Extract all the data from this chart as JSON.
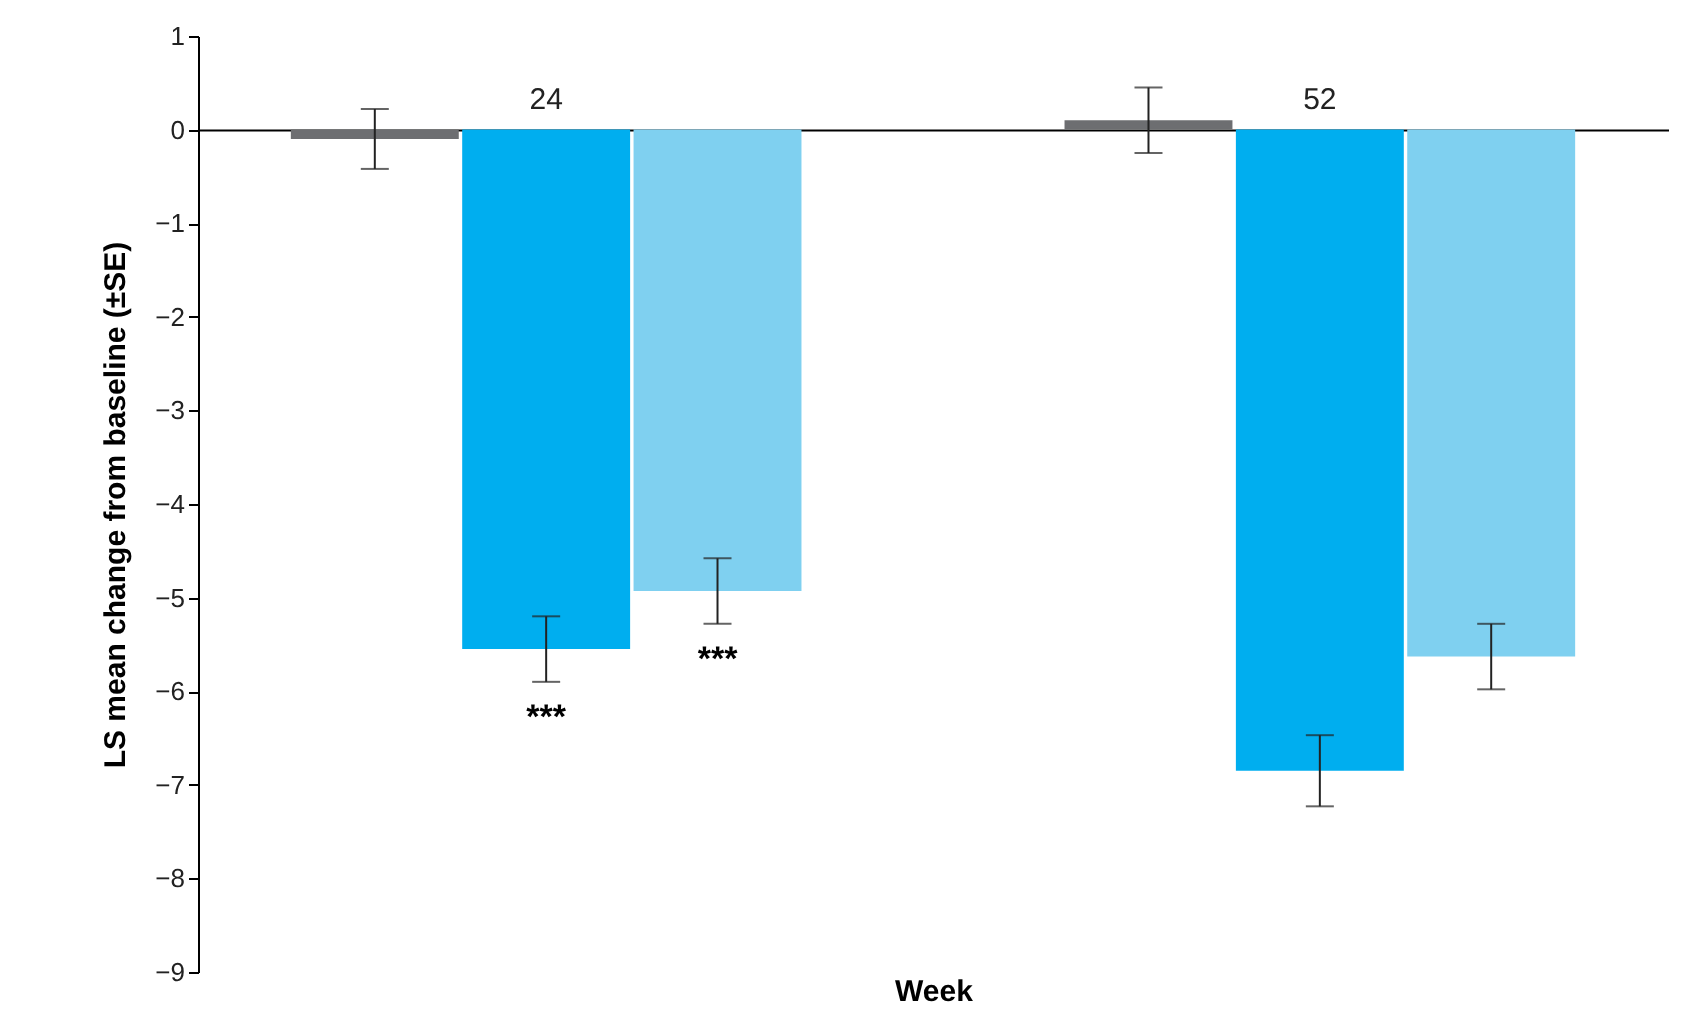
{
  "chart_data": {
    "type": "bar",
    "xlabel": "Week",
    "ylabel": "LS mean change from baseline (±SE)",
    "categories": [
      "24",
      "52"
    ],
    "series": [
      {
        "color": "#6d6e71",
        "values": [
          -0.1,
          0.1
        ],
        "errors": [
          0.32,
          0.35
        ]
      },
      {
        "color": "#00aeef",
        "values": [
          -5.55,
          -6.85
        ],
        "errors": [
          0.35,
          0.38
        ]
      },
      {
        "color": "#7fd0f0",
        "values": [
          -4.93,
          -5.63
        ],
        "errors": [
          0.35,
          0.35
        ]
      }
    ],
    "ylim": [
      -9,
      1
    ],
    "yticks": [
      1,
      0,
      -1,
      -2,
      -3,
      -4,
      -5,
      -6,
      -7,
      -8,
      -9
    ],
    "grid": false,
    "legend": false,
    "annotations": [
      {
        "text": "***",
        "x": "24",
        "y": -5.55
      },
      "***"
    ]
  }
}
